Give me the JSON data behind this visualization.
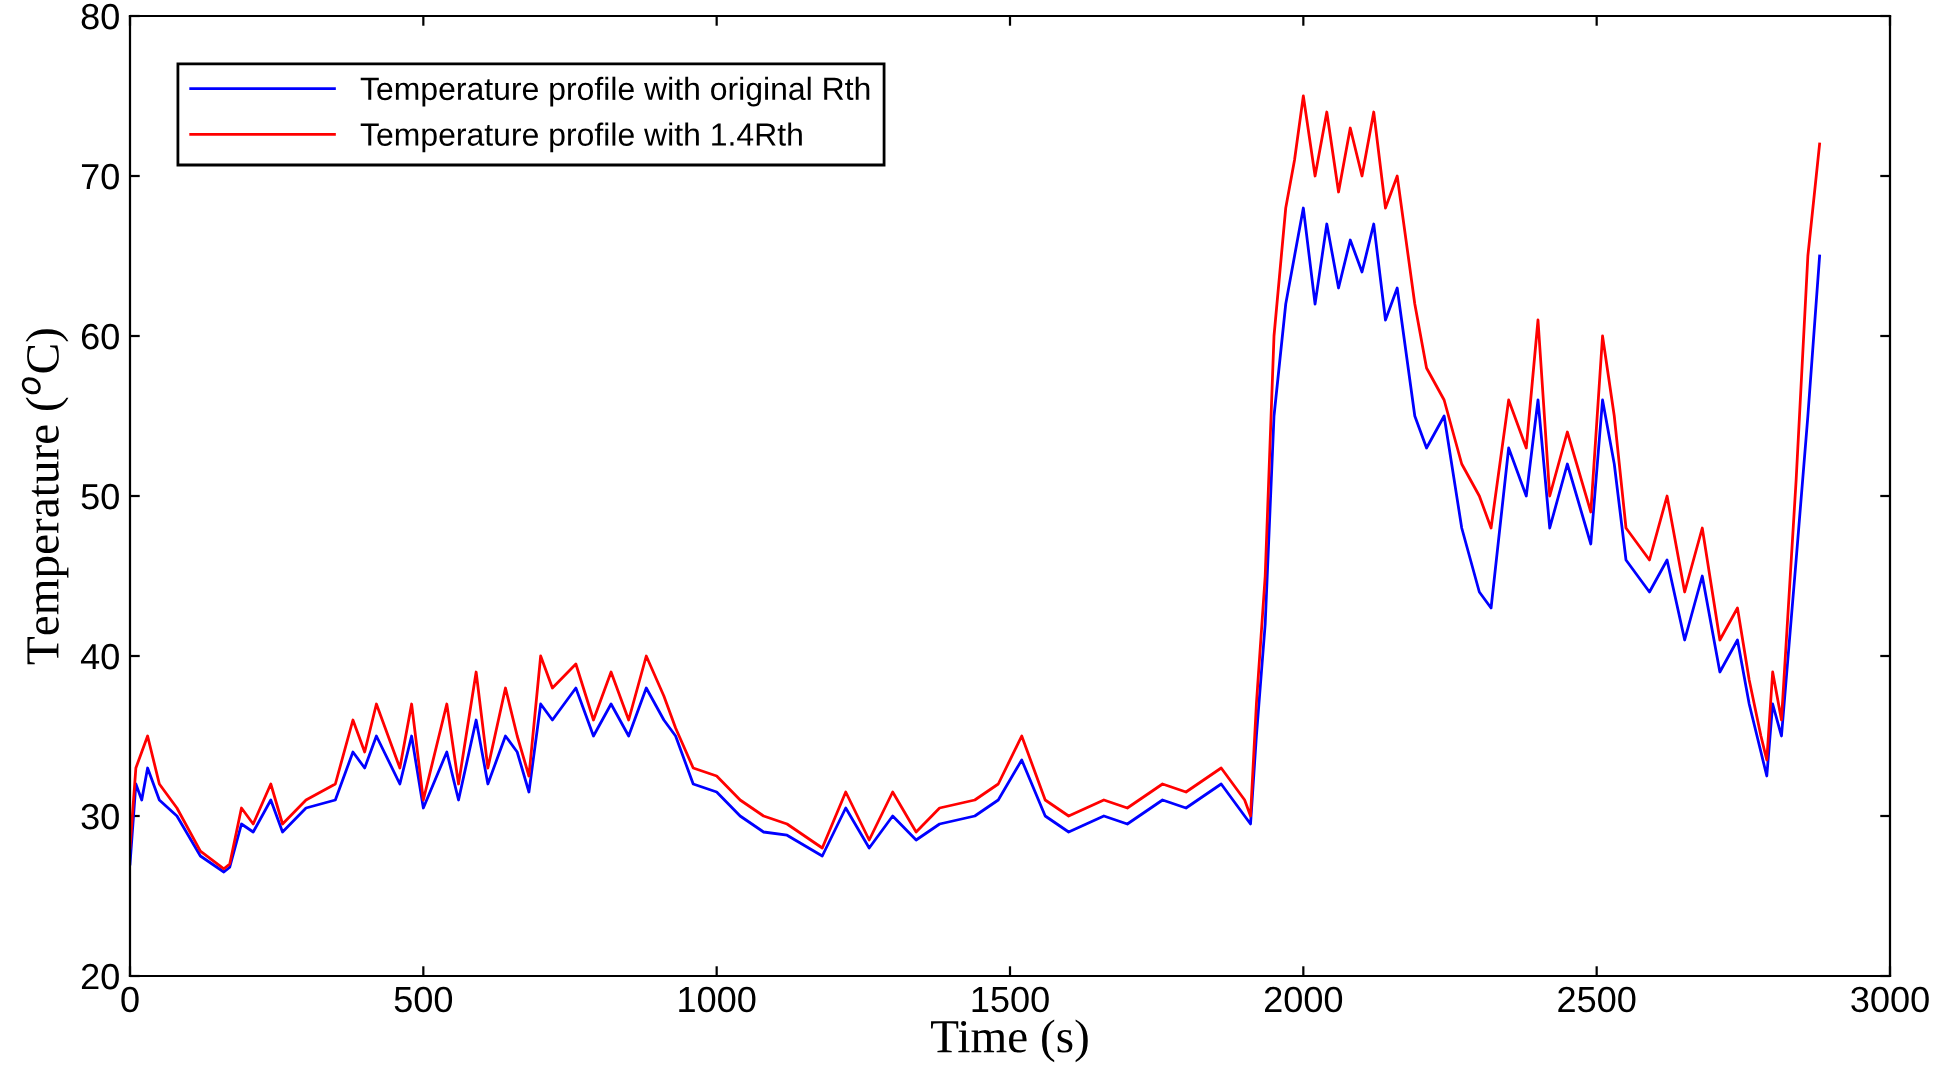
{
  "chart_data": {
    "type": "line",
    "xlabel": "Time (s)",
    "ylabel": "Temperature ($^{o}$C)",
    "x": [
      0,
      10,
      20,
      30,
      50,
      80,
      120,
      160,
      170,
      190,
      210,
      240,
      260,
      300,
      350,
      380,
      400,
      420,
      460,
      480,
      500,
      540,
      560,
      590,
      610,
      640,
      660,
      680,
      700,
      720,
      760,
      790,
      820,
      850,
      880,
      910,
      930,
      960,
      1000,
      1040,
      1080,
      1120,
      1180,
      1220,
      1260,
      1300,
      1340,
      1380,
      1440,
      1480,
      1520,
      1560,
      1600,
      1660,
      1700,
      1760,
      1800,
      1860,
      1900,
      1910,
      1920,
      1935,
      1950,
      1970,
      1985,
      2000,
      2020,
      2040,
      2060,
      2080,
      2100,
      2120,
      2140,
      2160,
      2190,
      2210,
      2240,
      2270,
      2300,
      2320,
      2350,
      2380,
      2400,
      2420,
      2450,
      2490,
      2510,
      2530,
      2550,
      2590,
      2620,
      2650,
      2680,
      2710,
      2740,
      2760,
      2780,
      2790,
      2800,
      2815,
      2840,
      2860,
      2880
    ],
    "series": [
      {
        "name": "Temperature profile with original Rth",
        "color": "#0000ff",
        "values": [
          27,
          32,
          31,
          33,
          31,
          30,
          27.5,
          26.5,
          26.8,
          29.5,
          29,
          31,
          29,
          30.5,
          31,
          34,
          33,
          35,
          32,
          35,
          30.5,
          34,
          31,
          36,
          32,
          35,
          34,
          31.5,
          37,
          36,
          38,
          35,
          37,
          35,
          38,
          36,
          35,
          32,
          31.5,
          30,
          29,
          28.8,
          27.5,
          30.5,
          28,
          30,
          28.5,
          29.5,
          30,
          31,
          33.5,
          30,
          29,
          30,
          29.5,
          31,
          30.5,
          32,
          30,
          29.5,
          35,
          42,
          55,
          62,
          65,
          68,
          62,
          67,
          63,
          66,
          64,
          67,
          61,
          63,
          55,
          53,
          55,
          48,
          44,
          43,
          53,
          50,
          56,
          48,
          52,
          47,
          56,
          52,
          46,
          44,
          46,
          41,
          45,
          39,
          41,
          37,
          34,
          32.5,
          37,
          35,
          46,
          55,
          65
        ]
      },
      {
        "name": "Temperature profile with 1.4Rth",
        "color": "#ff0000",
        "values": [
          28,
          33,
          34,
          35,
          32,
          30.5,
          27.8,
          26.7,
          27,
          30.5,
          29.5,
          32,
          29.5,
          31,
          32,
          36,
          34,
          37,
          33,
          37,
          31,
          37,
          32,
          39,
          33,
          38,
          35,
          32.5,
          40,
          38,
          39.5,
          36,
          39,
          36,
          40,
          37.5,
          35.5,
          33,
          32.5,
          31,
          30,
          29.5,
          28,
          31.5,
          28.5,
          31.5,
          29,
          30.5,
          31,
          32,
          35,
          31,
          30,
          31,
          30.5,
          32,
          31.5,
          33,
          31,
          30,
          37,
          45,
          60,
          68,
          71,
          75,
          70,
          74,
          69,
          73,
          70,
          74,
          68,
          70,
          62,
          58,
          56,
          52,
          50,
          48,
          56,
          53,
          61,
          50,
          54,
          49,
          60,
          55,
          48,
          46,
          50,
          44,
          48,
          41,
          43,
          38.5,
          35,
          33.5,
          39,
          36,
          51,
          65,
          72
        ]
      }
    ],
    "xlim": [
      0,
      3000
    ],
    "xticks": [
      0,
      500,
      1000,
      1500,
      2000,
      2500,
      3000
    ],
    "ylim": [
      20,
      80
    ],
    "yticks": [
      20,
      30,
      40,
      50,
      60,
      70,
      80
    ],
    "legend": "top left",
    "grid": false,
    "marker": "none",
    "line_style": "solid"
  }
}
